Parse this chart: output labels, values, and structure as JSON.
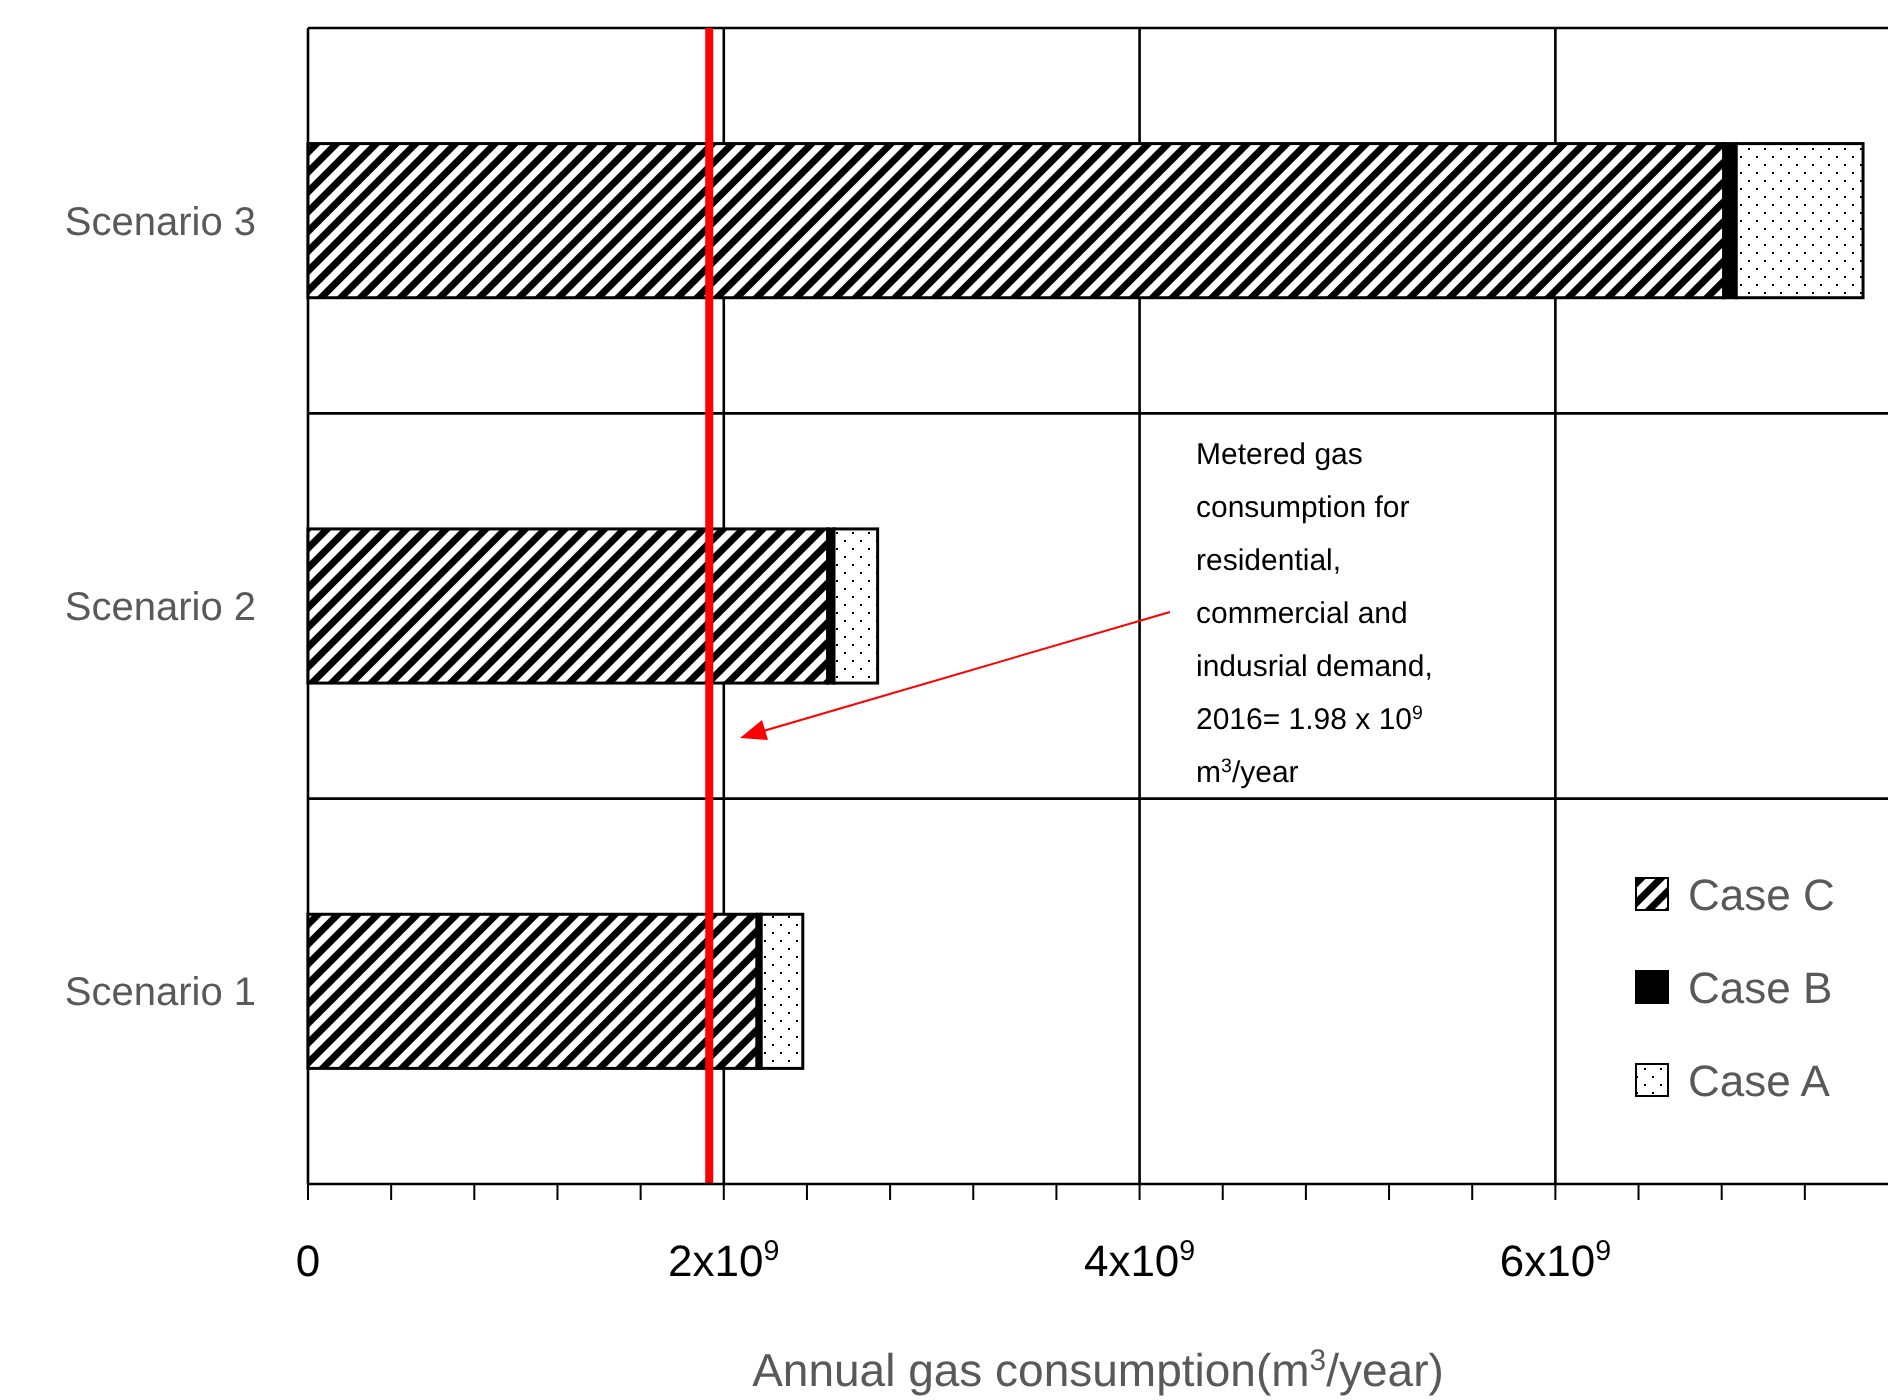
{
  "chart_data": {
    "type": "bar",
    "orientation": "horizontal",
    "stacked": true,
    "xlabel": "Annual gas consumption(m$^{3}$/year)",
    "categories": [
      "Scenario 3",
      "Scenario 2",
      "Scenario 1"
    ],
    "series": [
      {
        "name": "Case C",
        "color": "#000000",
        "values": [
          6810000000,
          2500000000,
          2160000000
        ]
      },
      {
        "name": "Case B",
        "color": "#000000",
        "values": [
          60000000,
          30000000,
          20000000
        ]
      },
      {
        "name": "Case A",
        "color": "#000000",
        "values": [
          610000000,
          210000000,
          200000000
        ]
      }
    ],
    "xlim": [
      0,
      7600000000
    ],
    "xticks": [
      0,
      {
        "value": 400000000,
        "label": null
      },
      {
        "value": 800000000,
        "label": null
      },
      {
        "value": 1200000000,
        "label": null
      },
      {
        "value": 1600000000,
        "label": null
      },
      {
        "value": 2000000000,
        "label": "2x10$^{9}$"
      },
      {
        "value": 2400000000,
        "label": null
      },
      {
        "value": 2800000000,
        "label": null
      },
      {
        "value": 3200000000,
        "label": null
      },
      {
        "value": 3600000000,
        "label": null
      },
      {
        "value": 4000000000,
        "label": "4x10$^{9}$"
      },
      {
        "value": 4400000000,
        "label": null
      },
      {
        "value": 4800000000,
        "label": null
      },
      {
        "value": 5200000000,
        "label": null
      },
      {
        "value": 5600000000,
        "label": null
      },
      {
        "value": 6000000000,
        "label": "6x10$^{9}$"
      },
      {
        "value": 6400000000,
        "label": null
      },
      {
        "value": 6800000000,
        "label": null
      },
      {
        "value": 7200000000,
        "label": null
      }
    ],
    "ref_lines": [
      {
        "axis": "x",
        "value": 1930000000,
        "label": null,
        "color": "#ff0000"
      }
    ],
    "annotations": [
      "Metered gas consumption for residential, commercial and indusrial demand, 2016= 1.98 x 10$^{9}$ m$^{3}$/year"
    ],
    "grid": true,
    "legend": "bottom right"
  }
}
